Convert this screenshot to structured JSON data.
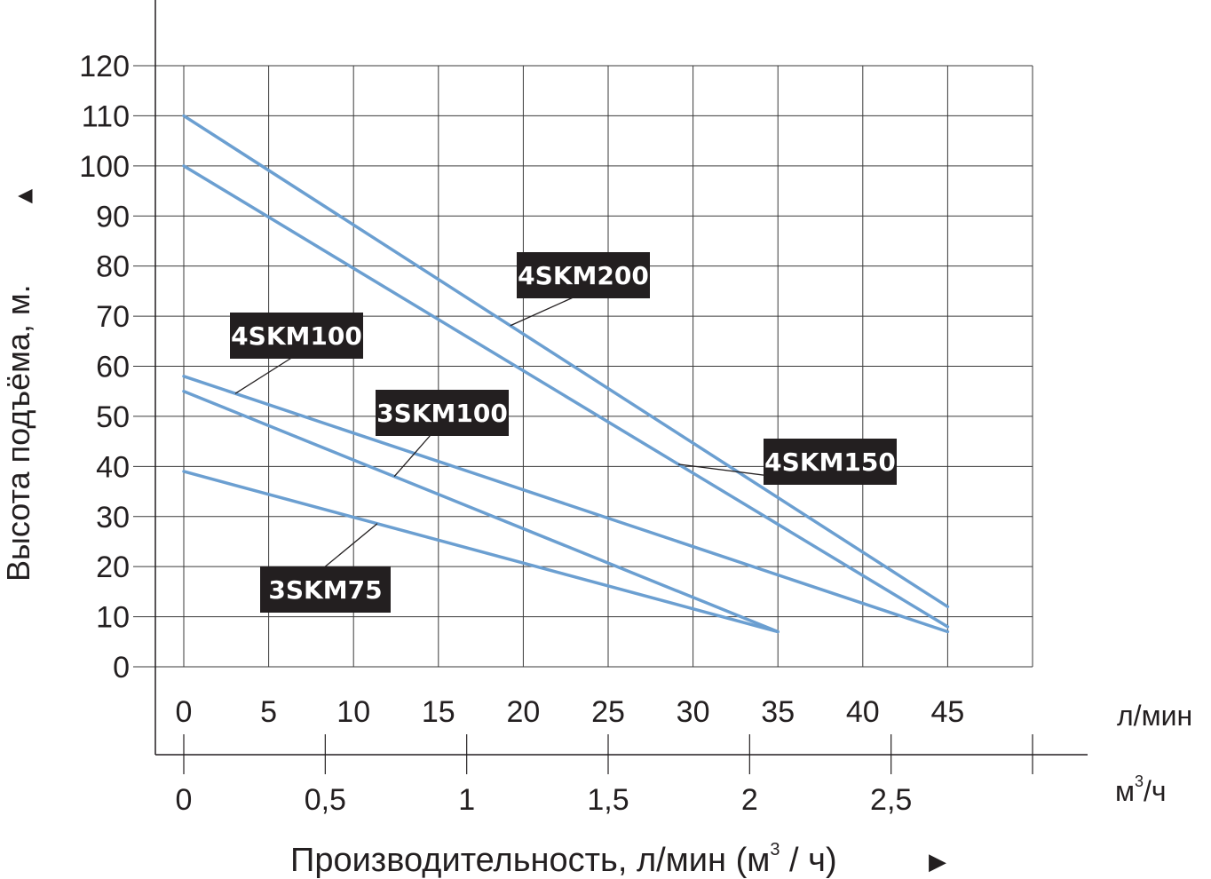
{
  "chart_data": {
    "type": "line",
    "ylabel": "Высота подъёма, м.",
    "ylabel_arrow": "▲",
    "xlabel": "Производительность, л/мин (м",
    "xlabel_sup": "3",
    "xlabel_end": " / ч)",
    "xlabel_arrow": "▶",
    "unit_lpm": "л/мин",
    "unit_m3h_base": "м",
    "unit_m3h_sup": "3",
    "unit_m3h_end": "/ч",
    "ylim": [
      0,
      120
    ],
    "xlim": [
      0,
      50
    ],
    "y_ticks": [
      "120",
      "110",
      "100",
      "90",
      "80",
      "70",
      "60",
      "50",
      "40",
      "30",
      "20",
      "10",
      "0"
    ],
    "x_ticks_lpm": [
      "0",
      "5",
      "10",
      "15",
      "20",
      "25",
      "30",
      "35",
      "40",
      "45"
    ],
    "x_ticks_m3h": [
      "0",
      "0,5",
      "1",
      "1,5",
      "2",
      "2,5"
    ],
    "grid": true,
    "line_color": "#6b9fd1",
    "label_bg": "#231f20",
    "series": [
      {
        "name": "4SKM200",
        "x": [
          0,
          45
        ],
        "y": [
          110,
          12
        ]
      },
      {
        "name": "4SKM150",
        "x": [
          0,
          45
        ],
        "y": [
          100,
          8
        ]
      },
      {
        "name": "4SKM100",
        "x": [
          0,
          45
        ],
        "y": [
          58,
          7
        ]
      },
      {
        "name": "3SKM100",
        "x": [
          0,
          35
        ],
        "y": [
          55,
          7
        ]
      },
      {
        "name": "3SKM75",
        "x": [
          0,
          35
        ],
        "y": [
          39,
          7
        ]
      }
    ]
  }
}
